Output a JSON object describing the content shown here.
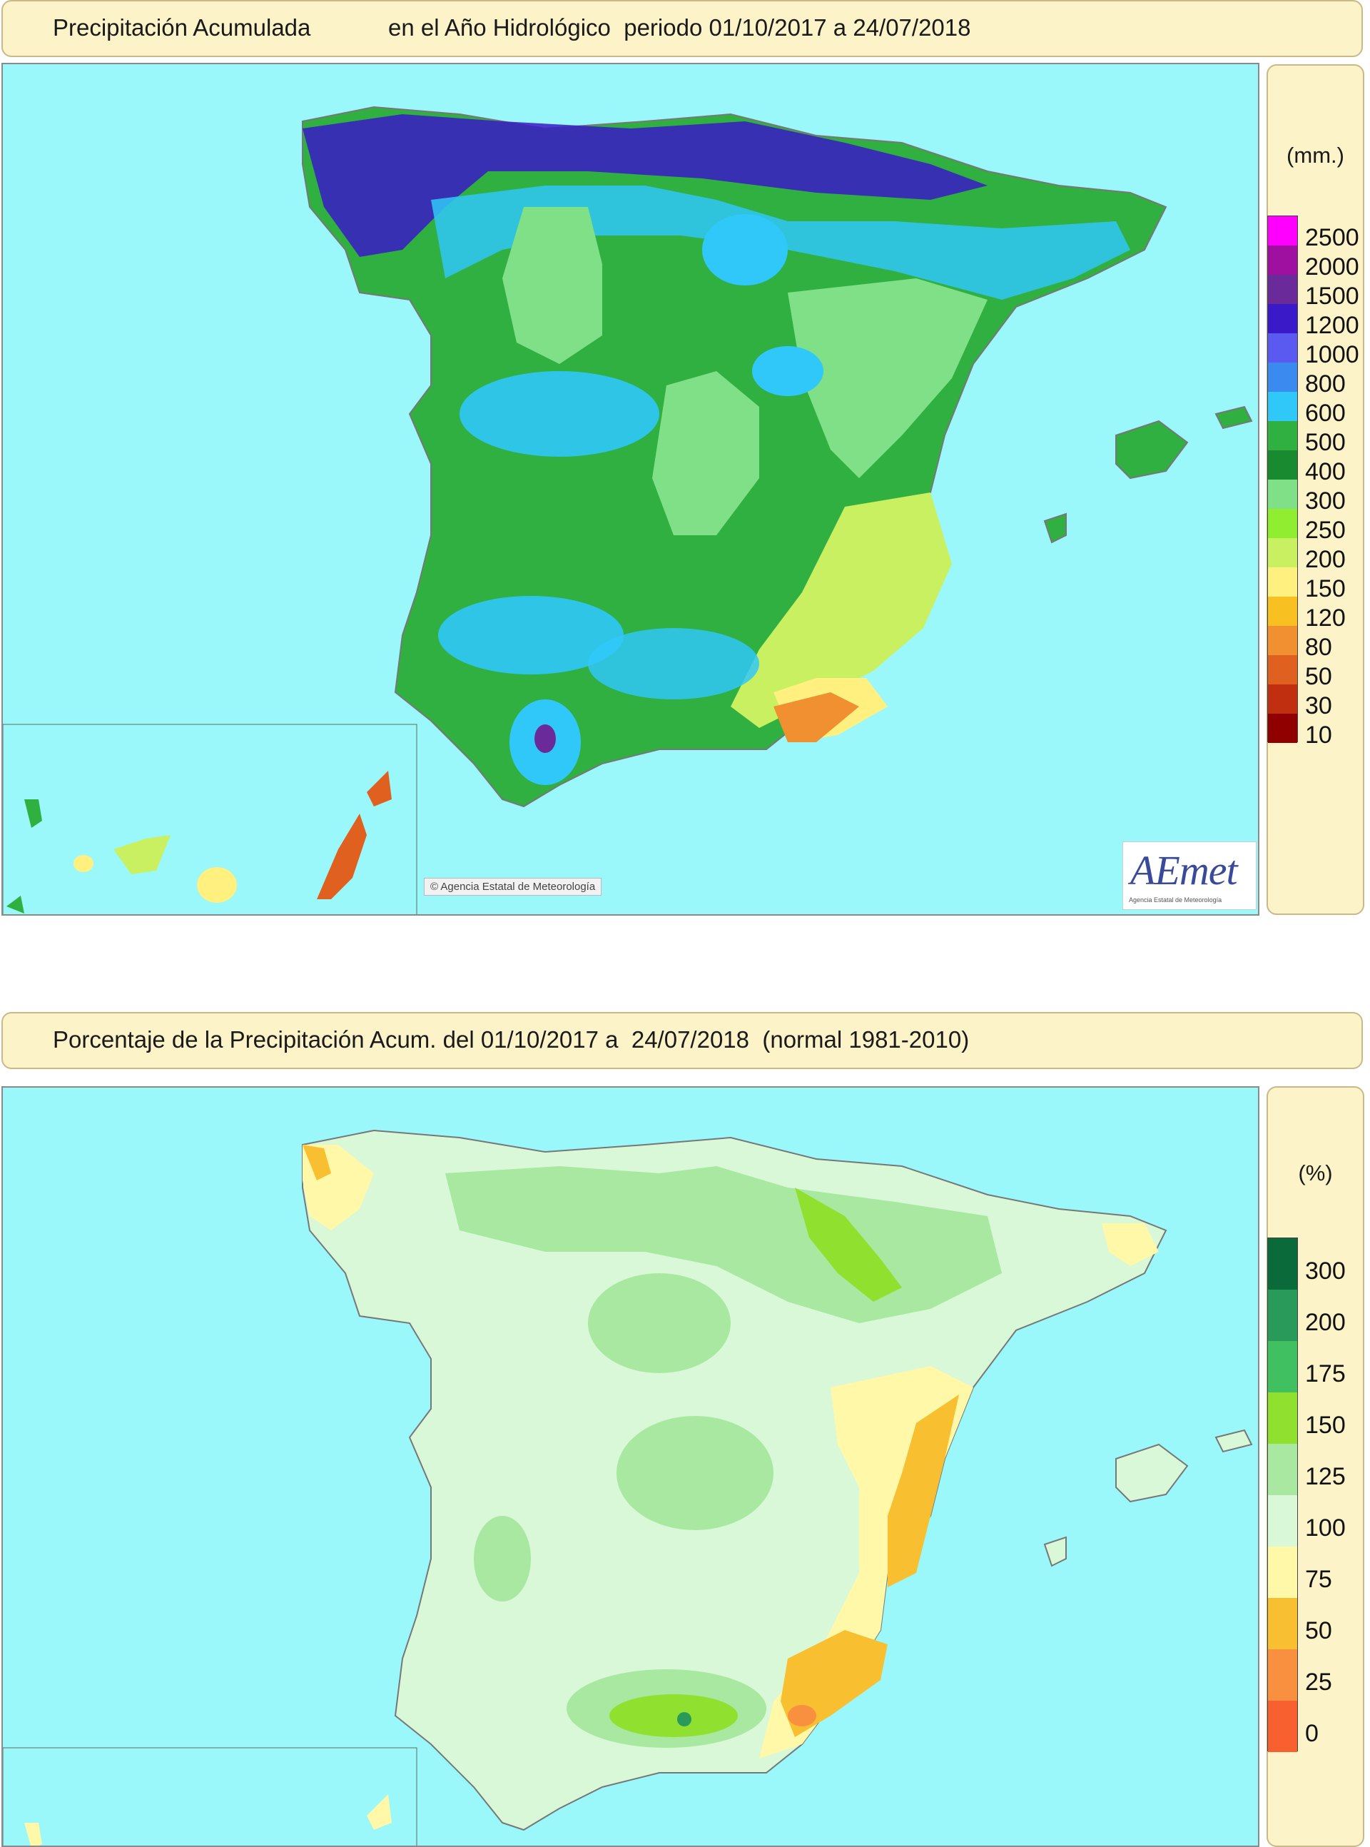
{
  "map_top": {
    "title_left": "Precipitación Acumulada",
    "title_right": "en el Año Hidrológico  periodo 01/10/2017 a 24/07/2018",
    "unit": "(mm.)",
    "legend": [
      {
        "label": "2500",
        "color": "#ff00ff"
      },
      {
        "label": "2000",
        "color": "#a010a0"
      },
      {
        "label": "1500",
        "color": "#6a2a9a"
      },
      {
        "label": "1200",
        "color": "#3a1ac8"
      },
      {
        "label": "1000",
        "color": "#5a5af0"
      },
      {
        "label": "800",
        "color": "#3a8af0"
      },
      {
        "label": "600",
        "color": "#30c8f8"
      },
      {
        "label": "500",
        "color": "#30b040"
      },
      {
        "label": "400",
        "color": "#1a8a30"
      },
      {
        "label": "300",
        "color": "#80e088"
      },
      {
        "label": "250",
        "color": "#90ee30"
      },
      {
        "label": "200",
        "color": "#c8f060"
      },
      {
        "label": "150",
        "color": "#fff080"
      },
      {
        "label": "120",
        "color": "#f8c020"
      },
      {
        "label": "80",
        "color": "#f09030"
      },
      {
        "label": "50",
        "color": "#e06020"
      },
      {
        "label": "30",
        "color": "#c03010"
      },
      {
        "label": "10",
        "color": "#900000"
      }
    ],
    "credit": "© Agencia Estatal de Meteorología"
  },
  "map_bottom": {
    "title": "Porcentaje de la Precipitación Acum. del 01/10/2017 a  24/07/2018  (normal 1981-2010)",
    "unit": "(%)",
    "legend": [
      {
        "label": "300",
        "color": "#0a6a3a"
      },
      {
        "label": "200",
        "color": "#2a9a5a"
      },
      {
        "label": "175",
        "color": "#40c060"
      },
      {
        "label": "150",
        "color": "#90e030"
      },
      {
        "label": "125",
        "color": "#a8e8a0"
      },
      {
        "label": "100",
        "color": "#d8f8d8"
      },
      {
        "label": "75",
        "color": "#fff8a8"
      },
      {
        "label": "50",
        "color": "#f8c030"
      },
      {
        "label": "25",
        "color": "#f89040"
      },
      {
        "label": "0",
        "color": "#f86030"
      }
    ]
  },
  "logo": {
    "text": "AEmet",
    "subtitle": "Agencia Estatal de Meteorología"
  },
  "colors": {
    "sea": "#9af8fb",
    "panel": "#fcf3c8"
  }
}
